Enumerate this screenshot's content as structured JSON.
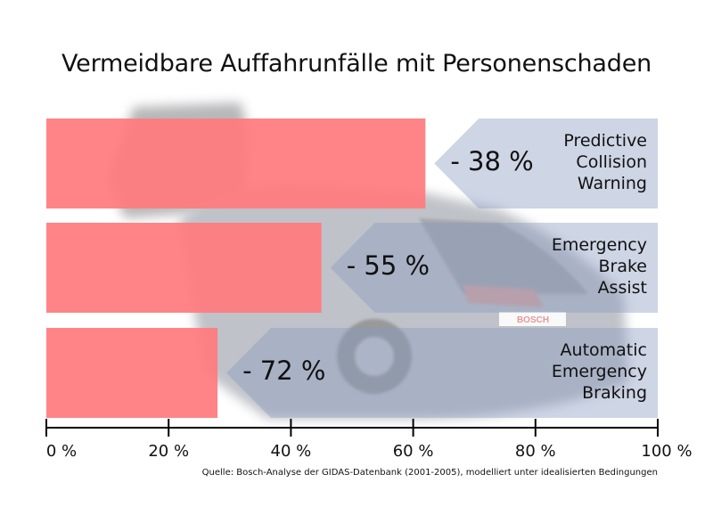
{
  "title": "Vermeidbare Auffahrunfälle mit Personenschaden",
  "source": "Quelle: Bosch-Analyse der GIDAS-Datenbank (2001-2005), modelliert  unter idealisierten Bedingungen",
  "colors": {
    "remaining_bar": "#ff7b7e",
    "reduction_arrow": "#8b9bc0",
    "axis": "#000000"
  },
  "chart_data": {
    "type": "bar",
    "orientation": "horizontal",
    "categories": [
      [
        "Predictive",
        "Collision",
        "Warning"
      ],
      [
        "Emergency",
        "Brake",
        "Assist"
      ],
      [
        "Automatic",
        "Emergency",
        "Braking"
      ]
    ],
    "value_labels": [
      "- 38 %",
      "- 55 %",
      "- 72 %"
    ],
    "series": [
      {
        "values": [
          62,
          45,
          28
        ]
      },
      {
        "values": [
          38,
          55,
          72
        ]
      }
    ],
    "xlim": [
      0,
      100
    ],
    "ticks": [
      0,
      20,
      40,
      60,
      80,
      100
    ],
    "tick_labels": [
      "0 %",
      "20 %",
      "40 %",
      "60 %",
      "80 %",
      "100 %"
    ],
    "grid": false,
    "background_photo": "rear of a car with BOSCH licence plate (faded)",
    "plate_text": "BOSCH"
  }
}
